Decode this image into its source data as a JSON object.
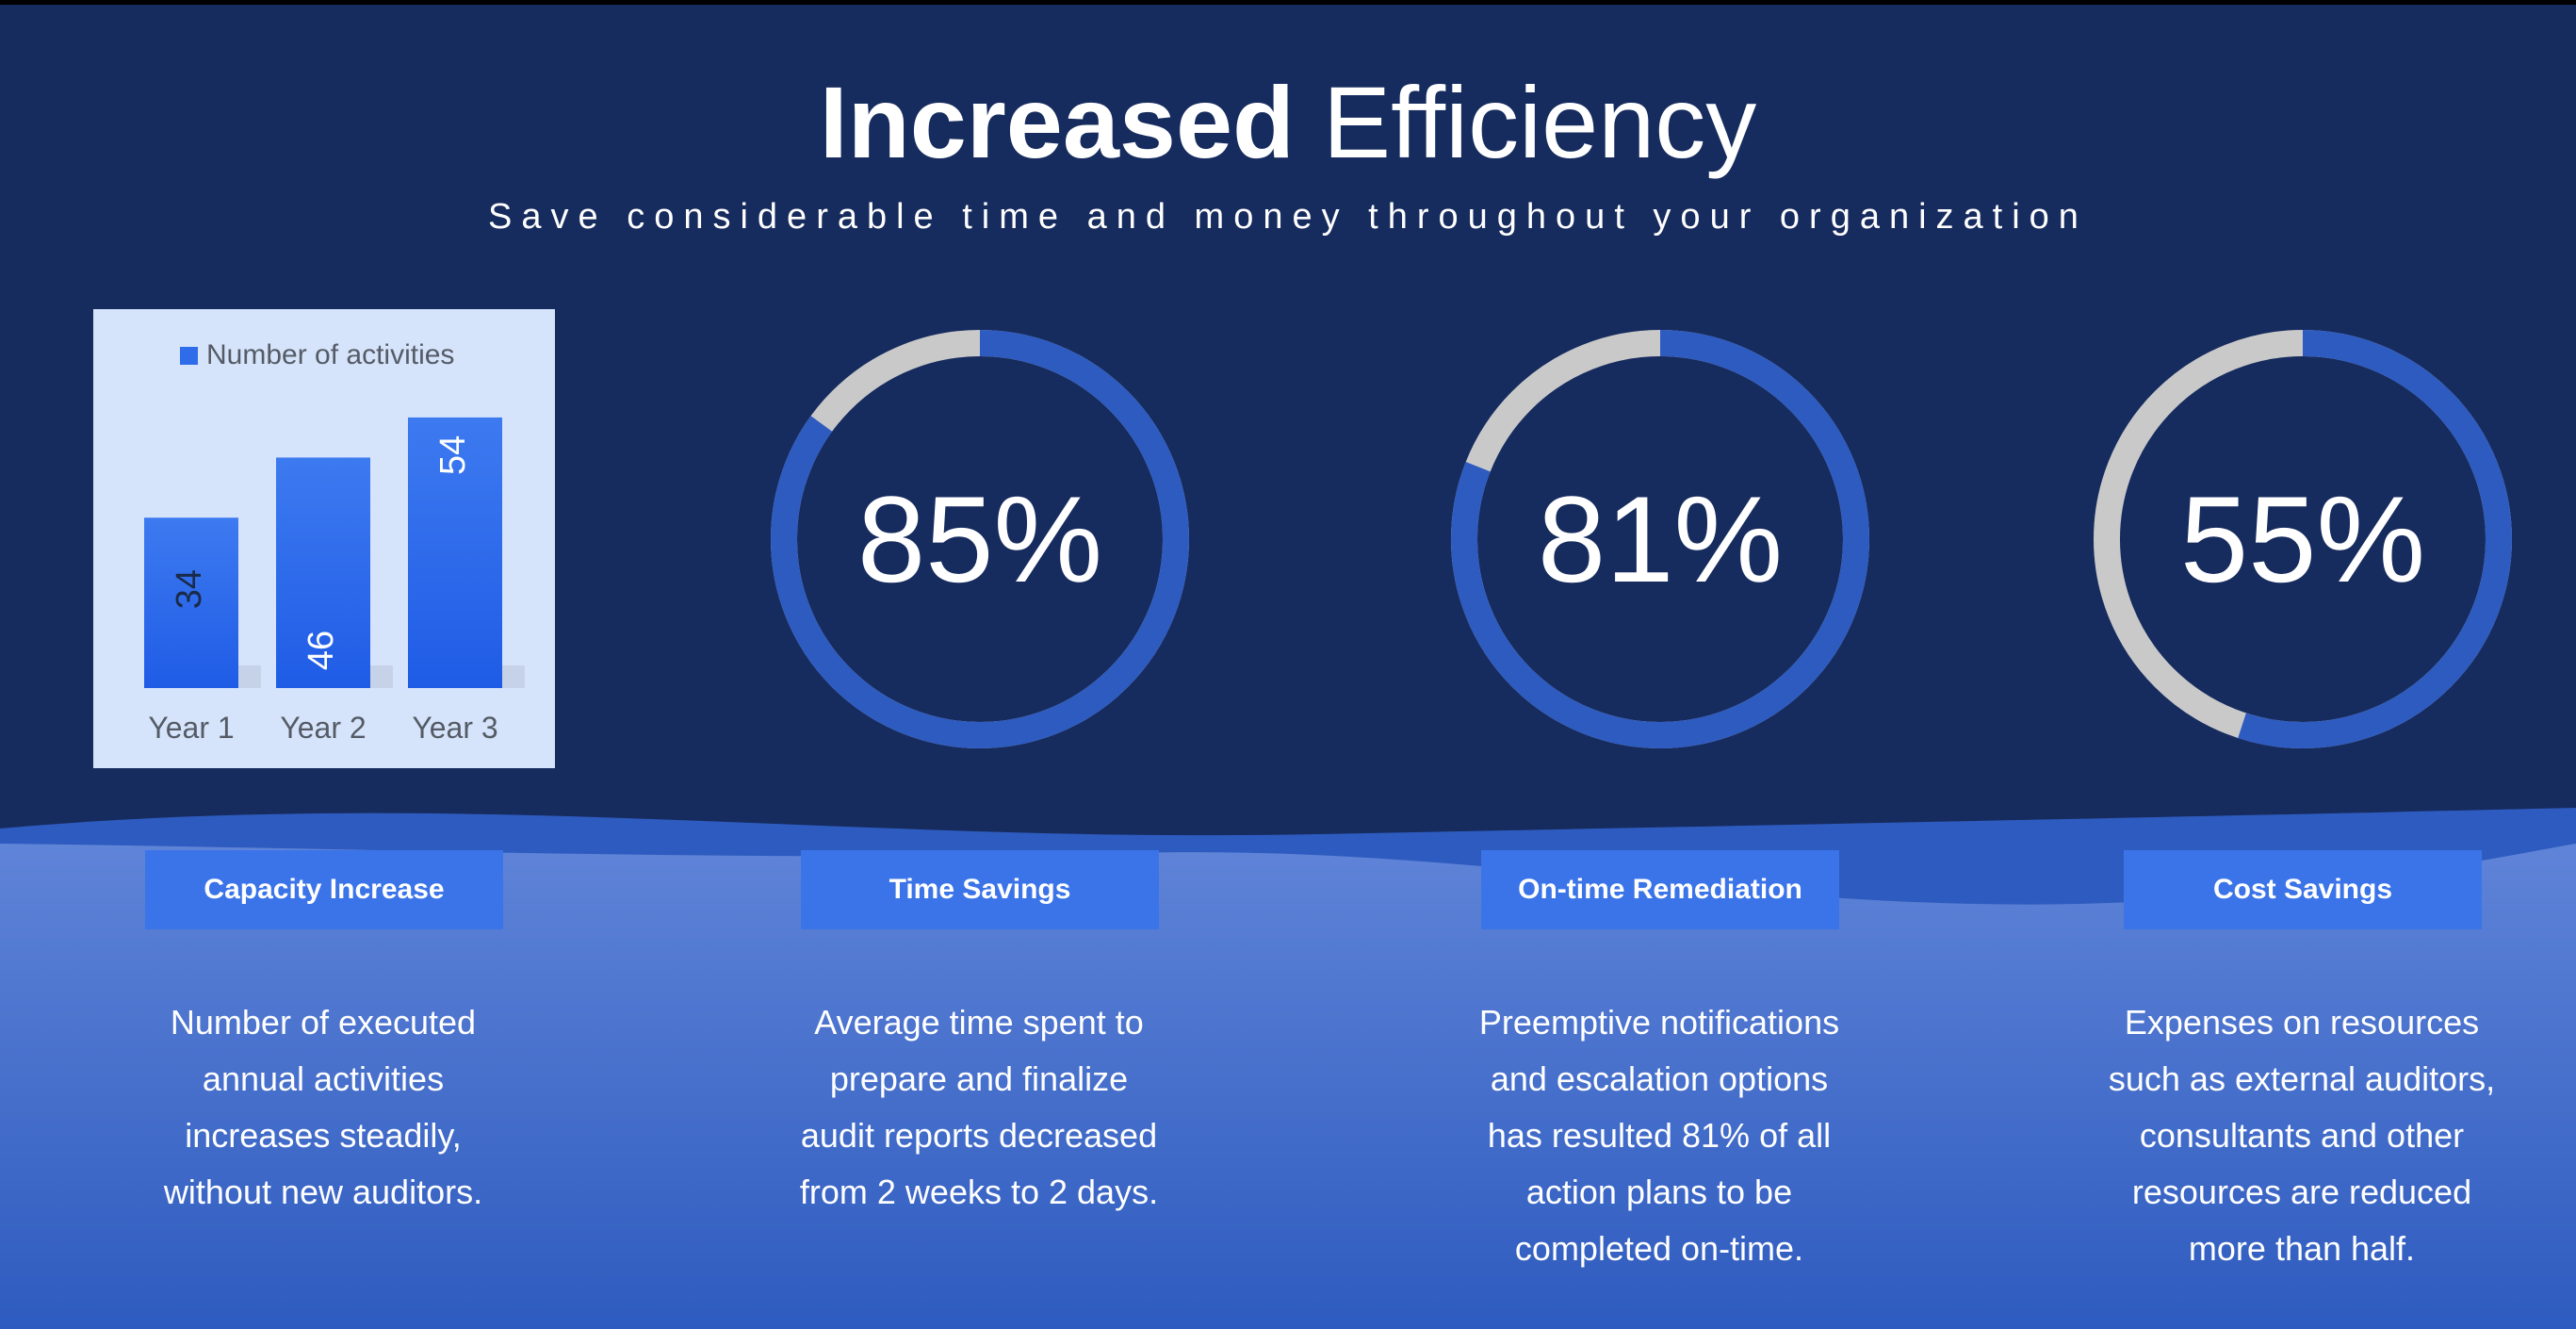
{
  "header": {
    "title_bold": "Increased",
    "title_light": "Efficiency",
    "subtitle": "Save considerable time and money throughout your organization"
  },
  "chart_data": {
    "type": "bar",
    "legend": "Number of activities",
    "categories": [
      "Year 1",
      "Year 2",
      "Year 3"
    ],
    "series": [
      {
        "name": "Number of activities",
        "values": [
          34,
          46,
          54
        ]
      }
    ],
    "ylim": [
      0,
      60
    ],
    "grid": false,
    "legend_position": "top"
  },
  "gauges": [
    {
      "value_text": "85%",
      "fraction": 0.85
    },
    {
      "value_text": "81%",
      "fraction": 0.81
    },
    {
      "value_text": "55%",
      "fraction": 0.55
    }
  ],
  "features": [
    {
      "label": "Capacity Increase",
      "lines": [
        "Number of executed",
        "annual activities",
        "increases steadily,",
        "without new auditors."
      ]
    },
    {
      "label": "Time Savings",
      "lines": [
        "Average time spent to",
        "prepare and finalize",
        "audit reports decreased",
        "from 2 weeks to 2 days."
      ]
    },
    {
      "label": "On-time Remediation",
      "lines": [
        "Preemptive notifications",
        "and escalation options",
        "has resulted 81% of all",
        "action plans to be",
        "completed on-time."
      ]
    },
    {
      "label": "Cost Savings",
      "lines": [
        "Expenses on resources",
        "such as external auditors,",
        "consultants and other",
        "resources are reduced",
        "more than half."
      ]
    }
  ],
  "colors": {
    "background": "#162b5e",
    "accent": "#3b74e8",
    "ring": "#2e5bbf",
    "ring_remainder": "#c9c9c9",
    "card": "#d6e4fb"
  }
}
